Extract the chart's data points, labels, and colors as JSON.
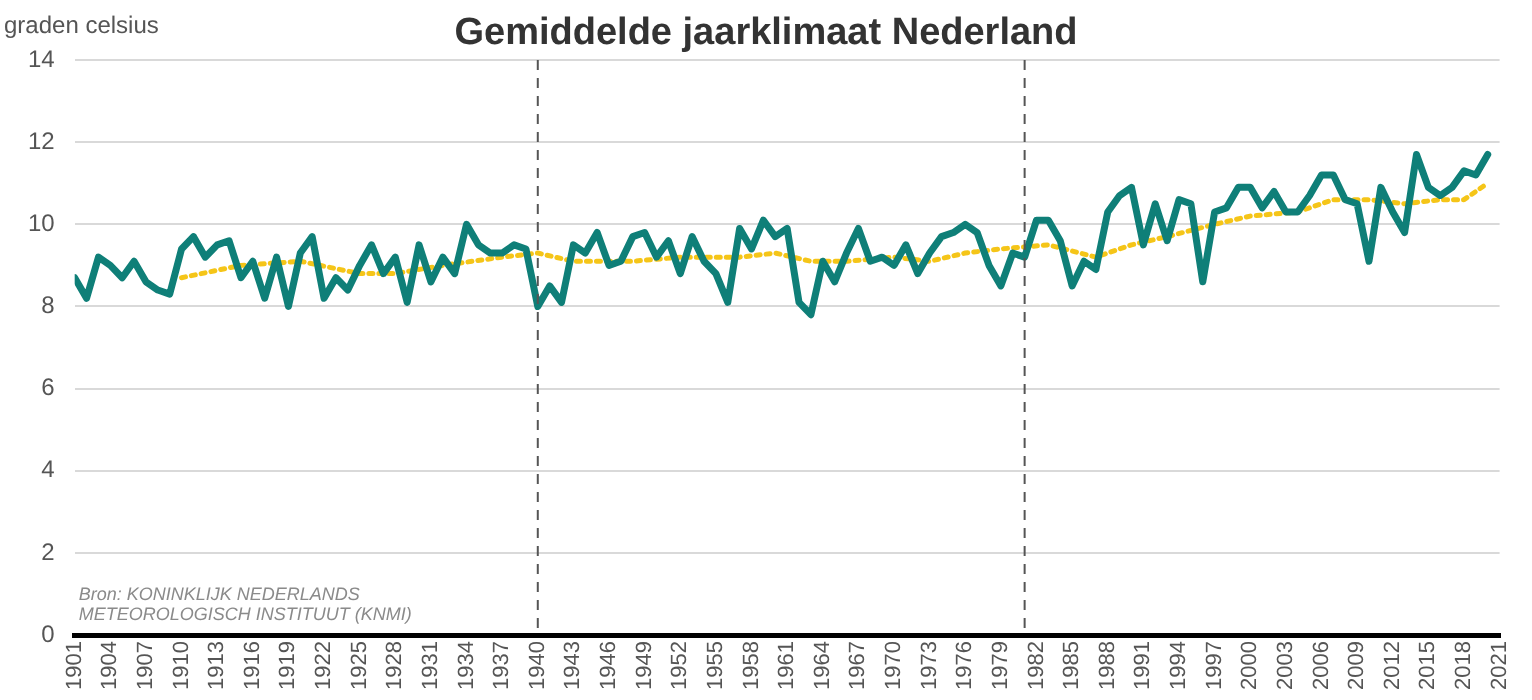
{
  "chart_data": {
    "type": "line",
    "title": "Gemiddelde jaarklimaat Nederland",
    "ylabel": "graden celsius",
    "annotations": [
      "Bron: KONINKLIJK NEDERLANDS",
      "METEOROLOGISCH INSTITUUT (KNMI)"
    ],
    "x": [
      1901,
      1902,
      1903,
      1904,
      1905,
      1906,
      1907,
      1908,
      1909,
      1910,
      1911,
      1912,
      1913,
      1914,
      1915,
      1916,
      1917,
      1918,
      1919,
      1920,
      1921,
      1922,
      1923,
      1924,
      1925,
      1926,
      1927,
      1928,
      1929,
      1930,
      1931,
      1932,
      1933,
      1934,
      1935,
      1936,
      1937,
      1938,
      1939,
      1940,
      1941,
      1942,
      1943,
      1944,
      1945,
      1946,
      1947,
      1948,
      1949,
      1950,
      1951,
      1952,
      1953,
      1954,
      1955,
      1956,
      1957,
      1958,
      1959,
      1960,
      1961,
      1962,
      1963,
      1964,
      1965,
      1966,
      1967,
      1968,
      1969,
      1970,
      1971,
      1972,
      1973,
      1974,
      1975,
      1976,
      1977,
      1978,
      1979,
      1980,
      1981,
      1982,
      1983,
      1984,
      1985,
      1986,
      1987,
      1988,
      1989,
      1990,
      1991,
      1992,
      1993,
      1994,
      1995,
      1996,
      1997,
      1998,
      1999,
      2000,
      2001,
      2002,
      2003,
      2004,
      2005,
      2006,
      2007,
      2008,
      2009,
      2010,
      2011,
      2012,
      2013,
      2014,
      2015,
      2016,
      2017,
      2018,
      2019,
      2020
    ],
    "series": [
      {
        "color": "#0f7f78",
        "line_style": "solid",
        "values": [
          8.7,
          8.2,
          9.2,
          9.0,
          8.7,
          9.1,
          8.6,
          8.4,
          8.3,
          9.4,
          9.7,
          9.2,
          9.5,
          9.6,
          8.7,
          9.1,
          8.2,
          9.2,
          8.0,
          9.3,
          9.7,
          8.2,
          8.7,
          8.4,
          9.0,
          9.5,
          8.8,
          9.2,
          8.1,
          9.5,
          8.6,
          9.2,
          8.8,
          10.0,
          9.5,
          9.3,
          9.3,
          9.5,
          9.4,
          8.0,
          8.5,
          8.1,
          9.5,
          9.3,
          9.8,
          9.0,
          9.1,
          9.7,
          9.8,
          9.2,
          9.6,
          8.8,
          9.7,
          9.1,
          8.8,
          8.1,
          9.9,
          9.4,
          10.1,
          9.7,
          9.9,
          8.1,
          7.8,
          9.1,
          8.6,
          9.3,
          9.9,
          9.1,
          9.2,
          9.0,
          9.5,
          8.8,
          9.3,
          9.7,
          9.8,
          10.0,
          9.8,
          9.0,
          8.5,
          9.3,
          9.2,
          10.1,
          10.1,
          9.6,
          8.5,
          9.1,
          8.9,
          10.3,
          10.7,
          10.9,
          9.5,
          10.5,
          9.6,
          10.6,
          10.5,
          8.6,
          10.3,
          10.4,
          10.9,
          10.9,
          10.4,
          10.8,
          10.3,
          10.3,
          10.7,
          11.2,
          11.2,
          10.6,
          10.5,
          9.1,
          10.9,
          10.3,
          9.8,
          11.7,
          10.9,
          10.7,
          10.9,
          11.3,
          11.2,
          11.7
        ]
      },
      {
        "color": "#f5c518",
        "line_style": "dotted",
        "x": [
          1910,
          1915,
          1920,
          1925,
          1928,
          1932,
          1937,
          1940,
          1943,
          1948,
          1952,
          1957,
          1960,
          1963,
          1966,
          1970,
          1973,
          1976,
          1979,
          1983,
          1987,
          1990,
          1993,
          1997,
          2000,
          2004,
          2007,
          2010,
          2013,
          2016,
          2018,
          2020
        ],
        "values": [
          8.7,
          9.0,
          9.1,
          8.8,
          8.8,
          9.0,
          9.2,
          9.3,
          9.1,
          9.1,
          9.2,
          9.2,
          9.3,
          9.1,
          9.1,
          9.2,
          9.1,
          9.3,
          9.4,
          9.5,
          9.2,
          9.5,
          9.7,
          10.0,
          10.2,
          10.3,
          10.6,
          10.6,
          10.5,
          10.6,
          10.6,
          11.0
        ]
      }
    ],
    "xlim": [
      1901,
      2021
    ],
    "xticks": [
      1901,
      1904,
      1907,
      1910,
      1913,
      1916,
      1919,
      1922,
      1925,
      1928,
      1931,
      1934,
      1937,
      1940,
      1943,
      1946,
      1949,
      1952,
      1955,
      1958,
      1961,
      1964,
      1967,
      1970,
      1973,
      1976,
      1979,
      1982,
      1985,
      1988,
      1991,
      1994,
      1997,
      2000,
      2003,
      2006,
      2009,
      2012,
      2015,
      2018,
      2021
    ],
    "ylim": [
      0,
      14
    ],
    "yticks": [
      0,
      2,
      4,
      6,
      8,
      10,
      12,
      14
    ],
    "grid": "y",
    "legend": false,
    "marker": "none",
    "ref_lines": [
      {
        "axis": "x",
        "value": 1940,
        "color": "#555555",
        "line_style": "dashed"
      },
      {
        "axis": "x",
        "value": 1981,
        "color": "#555555",
        "line_style": "dashed"
      }
    ]
  }
}
